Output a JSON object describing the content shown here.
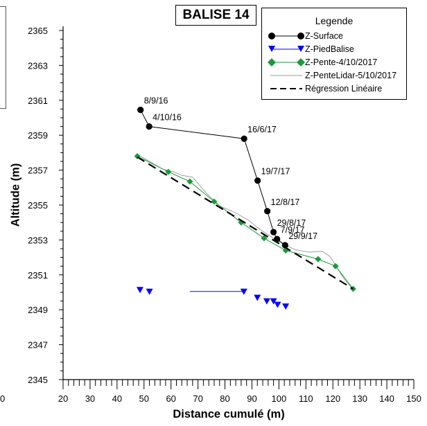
{
  "chart_data": {
    "type": "scatter",
    "title": "BALISE 14",
    "xlabel": "Distance cumulé (m)",
    "ylabel": "Altitude (m)",
    "xlim": [
      20,
      150
    ],
    "ylim": [
      2345,
      2365
    ],
    "x_ticks": [
      20,
      30,
      40,
      50,
      60,
      70,
      80,
      90,
      100,
      110,
      120,
      130,
      140,
      150
    ],
    "x_tick_labels": [
      "20",
      "30",
      "40",
      "50",
      "60",
      "70",
      "80",
      "90",
      "100",
      "110",
      "120",
      "130",
      "140",
      "150"
    ],
    "x_tick_partial_label": "50",
    "y_ticks": [
      2345,
      2347,
      2349,
      2351,
      2353,
      2355,
      2357,
      2359,
      2361,
      2363,
      2365
    ],
    "y_tick_labels": [
      "2345",
      "2347",
      "2349",
      "2351",
      "2353",
      "2355",
      "2357",
      "2359",
      "2361",
      "2363",
      "2365"
    ],
    "grid": false,
    "legend_position": "top-right",
    "legend_title": "Legende",
    "series": [
      {
        "name": "Z-Surface",
        "kind": "line-markers",
        "marker": "circle",
        "color": "#000000",
        "x": [
          48.7,
          51.9,
          87.1,
          92.1,
          95.7,
          98.0,
          99.3,
          102.3
        ],
        "y": [
          2360.45,
          2359.5,
          2358.8,
          2356.4,
          2354.65,
          2353.45,
          2353.05,
          2352.7
        ],
        "point_labels": [
          "8/9/16",
          "4/10/16",
          "16/6/17",
          "19/7/17",
          "12/8/17",
          "29/8/17",
          "7/9/17",
          "29/9/17"
        ]
      },
      {
        "name": "Z-PiedBalise",
        "kind": "markers",
        "marker": "triangle-down",
        "color": "#0000ff",
        "x": [
          48.5,
          52.0,
          87.0,
          92.0,
          95.5,
          98.0,
          99.5,
          102.5
        ],
        "y": [
          2350.15,
          2350.05,
          2350.05,
          2349.7,
          2349.5,
          2349.5,
          2349.3,
          2349.2
        ]
      },
      {
        "name": "Z-Pente-4/10/2017",
        "kind": "line-markers",
        "marker": "diamond",
        "color": "#1a9b3a",
        "x": [
          47.5,
          59.0,
          67.0,
          76.0,
          86.0,
          94.5,
          102.5,
          114.5,
          121.0,
          127.5
        ],
        "y": [
          2357.8,
          2356.9,
          2356.35,
          2355.2,
          2354.0,
          2353.1,
          2352.4,
          2351.9,
          2351.5,
          2350.2
        ]
      },
      {
        "name": "Z-PenteLidar-5/10/2017",
        "kind": "line",
        "color": "#888888",
        "x": [
          47.5,
          52.0,
          57.0,
          61.0,
          64.0,
          68.0,
          73.0,
          78.0,
          84.0,
          89.0,
          93.0,
          97.0,
          101.0,
          106.0,
          111.0,
          116.0,
          119.0,
          122.0,
          124.0,
          127.5
        ],
        "y": [
          2357.9,
          2357.5,
          2357.05,
          2356.9,
          2356.7,
          2356.6,
          2355.7,
          2354.95,
          2354.55,
          2354.1,
          2353.6,
          2353.2,
          2352.8,
          2352.45,
          2352.3,
          2352.35,
          2352.05,
          2351.3,
          2350.8,
          2350.15
        ]
      },
      {
        "name": "Régression Linéaire",
        "kind": "line",
        "dash": "dashed",
        "color": "#000000",
        "x": [
          47.5,
          127.5
        ],
        "y": [
          2357.75,
          2350.2
        ]
      },
      {
        "name": "",
        "kind": "line",
        "color": "#0000ff",
        "x": [
          67.0,
          87.0
        ],
        "y": [
          2350.05,
          2350.05
        ]
      }
    ]
  }
}
